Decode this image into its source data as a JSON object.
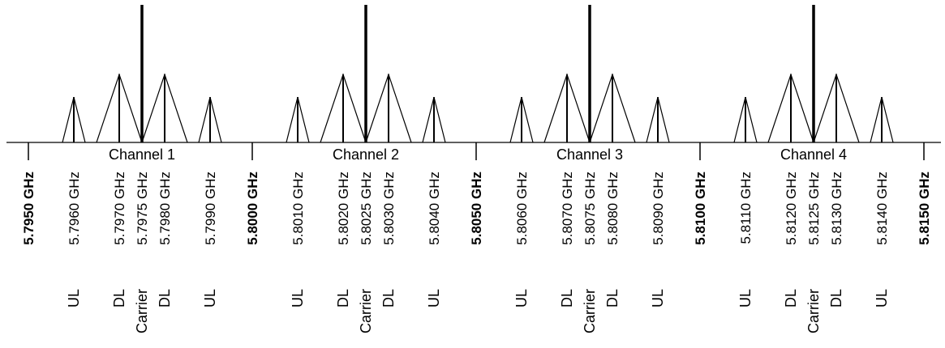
{
  "diagram": {
    "channels": [
      {
        "label": "Channel 1",
        "subcarriers": [
          {
            "freq": "5.7960 GHz",
            "role": "UL",
            "type": "ul"
          },
          {
            "freq": "5.7970 GHz",
            "role": "DL",
            "type": "dl"
          },
          {
            "freq": "5.7975 GHz",
            "role": "Carrier",
            "type": "carrier"
          },
          {
            "freq": "5.7980 GHz",
            "role": "DL",
            "type": "dl"
          },
          {
            "freq": "5.7990 GHz",
            "role": "UL",
            "type": "ul"
          }
        ]
      },
      {
        "label": "Channel 2",
        "subcarriers": [
          {
            "freq": "5.8010 GHz",
            "role": "UL",
            "type": "ul"
          },
          {
            "freq": "5.8020 GHz",
            "role": "DL",
            "type": "dl"
          },
          {
            "freq": "5.8025 GHz",
            "role": "Carrier",
            "type": "carrier"
          },
          {
            "freq": "5.8030 GHz",
            "role": "DL",
            "type": "dl"
          },
          {
            "freq": "5.8040 GHz",
            "role": "UL",
            "type": "ul"
          }
        ]
      },
      {
        "label": "Channel 3",
        "subcarriers": [
          {
            "freq": "5.8060 GHz",
            "role": "UL",
            "type": "ul"
          },
          {
            "freq": "5.8070 GHz",
            "role": "DL",
            "type": "dl"
          },
          {
            "freq": "5.8075 GHz",
            "role": "Carrier",
            "type": "carrier"
          },
          {
            "freq": "5.8080 GHz",
            "role": "DL",
            "type": "dl"
          },
          {
            "freq": "5.8090 GHz",
            "role": "UL",
            "type": "ul"
          }
        ]
      },
      {
        "label": "Channel 4",
        "subcarriers": [
          {
            "freq": "5.8110 GHz",
            "role": "UL",
            "type": "ul"
          },
          {
            "freq": "5.8120 GHz",
            "role": "DL",
            "type": "dl"
          },
          {
            "freq": "5.8125 GHz",
            "role": "Carrier",
            "type": "carrier"
          },
          {
            "freq": "5.8130 GHz",
            "role": "DL",
            "type": "dl"
          },
          {
            "freq": "5.8140 GHz",
            "role": "UL",
            "type": "ul"
          }
        ]
      }
    ],
    "boundaries": [
      "5.7950 GHz",
      "5.8000 GHz",
      "5.8050 GHz",
      "5.8100 GHz",
      "5.8150 GHz"
    ]
  }
}
